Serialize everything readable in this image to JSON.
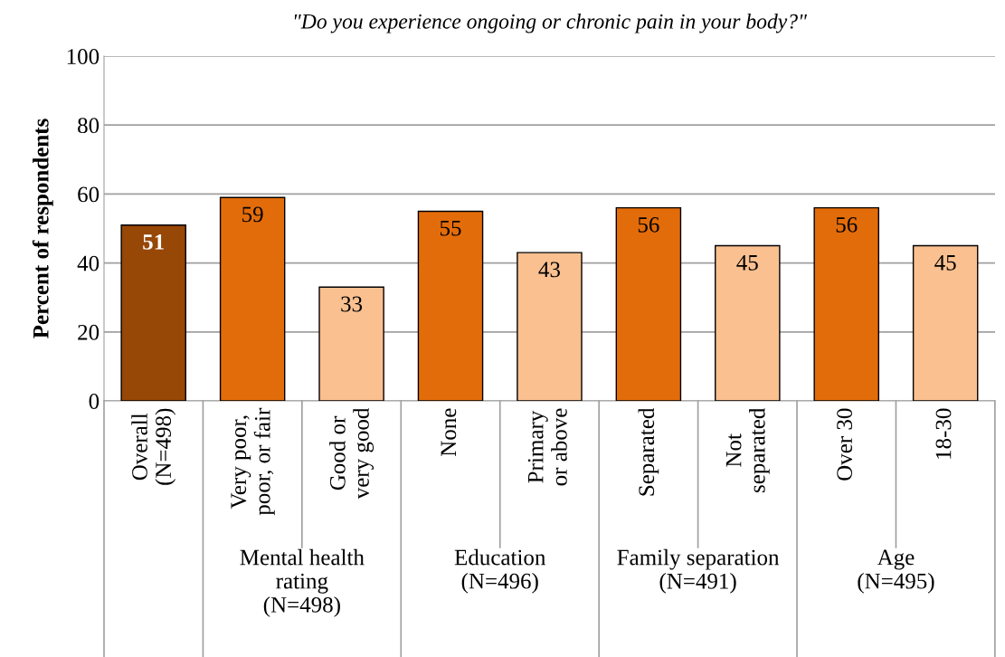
{
  "chart_data": {
    "type": "bar",
    "title": "\"Do you experience ongoing or chronic pain in your body?\"",
    "ylabel": "Percent of respondents",
    "categories": [
      "Overall\n(N=498)",
      "Very poor,\npoor, or fair",
      "Good or\nvery good",
      "None",
      "Primary\nor above",
      "Separated",
      "Not\nseparated",
      "Over 30",
      "18-30"
    ],
    "values": [
      51,
      59,
      33,
      55,
      43,
      56,
      45,
      56,
      45
    ],
    "colors": [
      "#974706",
      "#e36c0a",
      "#fac090",
      "#e36c0a",
      "#fac090",
      "#e36c0a",
      "#fac090",
      "#e36c0a",
      "#fac090"
    ],
    "annotations": [
      "Mental health\nrating\n(N=498)",
      "Education\n(N=496)",
      "Family separation\n(N=491)",
      "Age\n(N=495)"
    ],
    "ylim": [
      0,
      100
    ],
    "yticks": [
      0,
      20,
      40,
      60,
      80,
      100
    ],
    "grid": "y",
    "data_labels": true
  }
}
